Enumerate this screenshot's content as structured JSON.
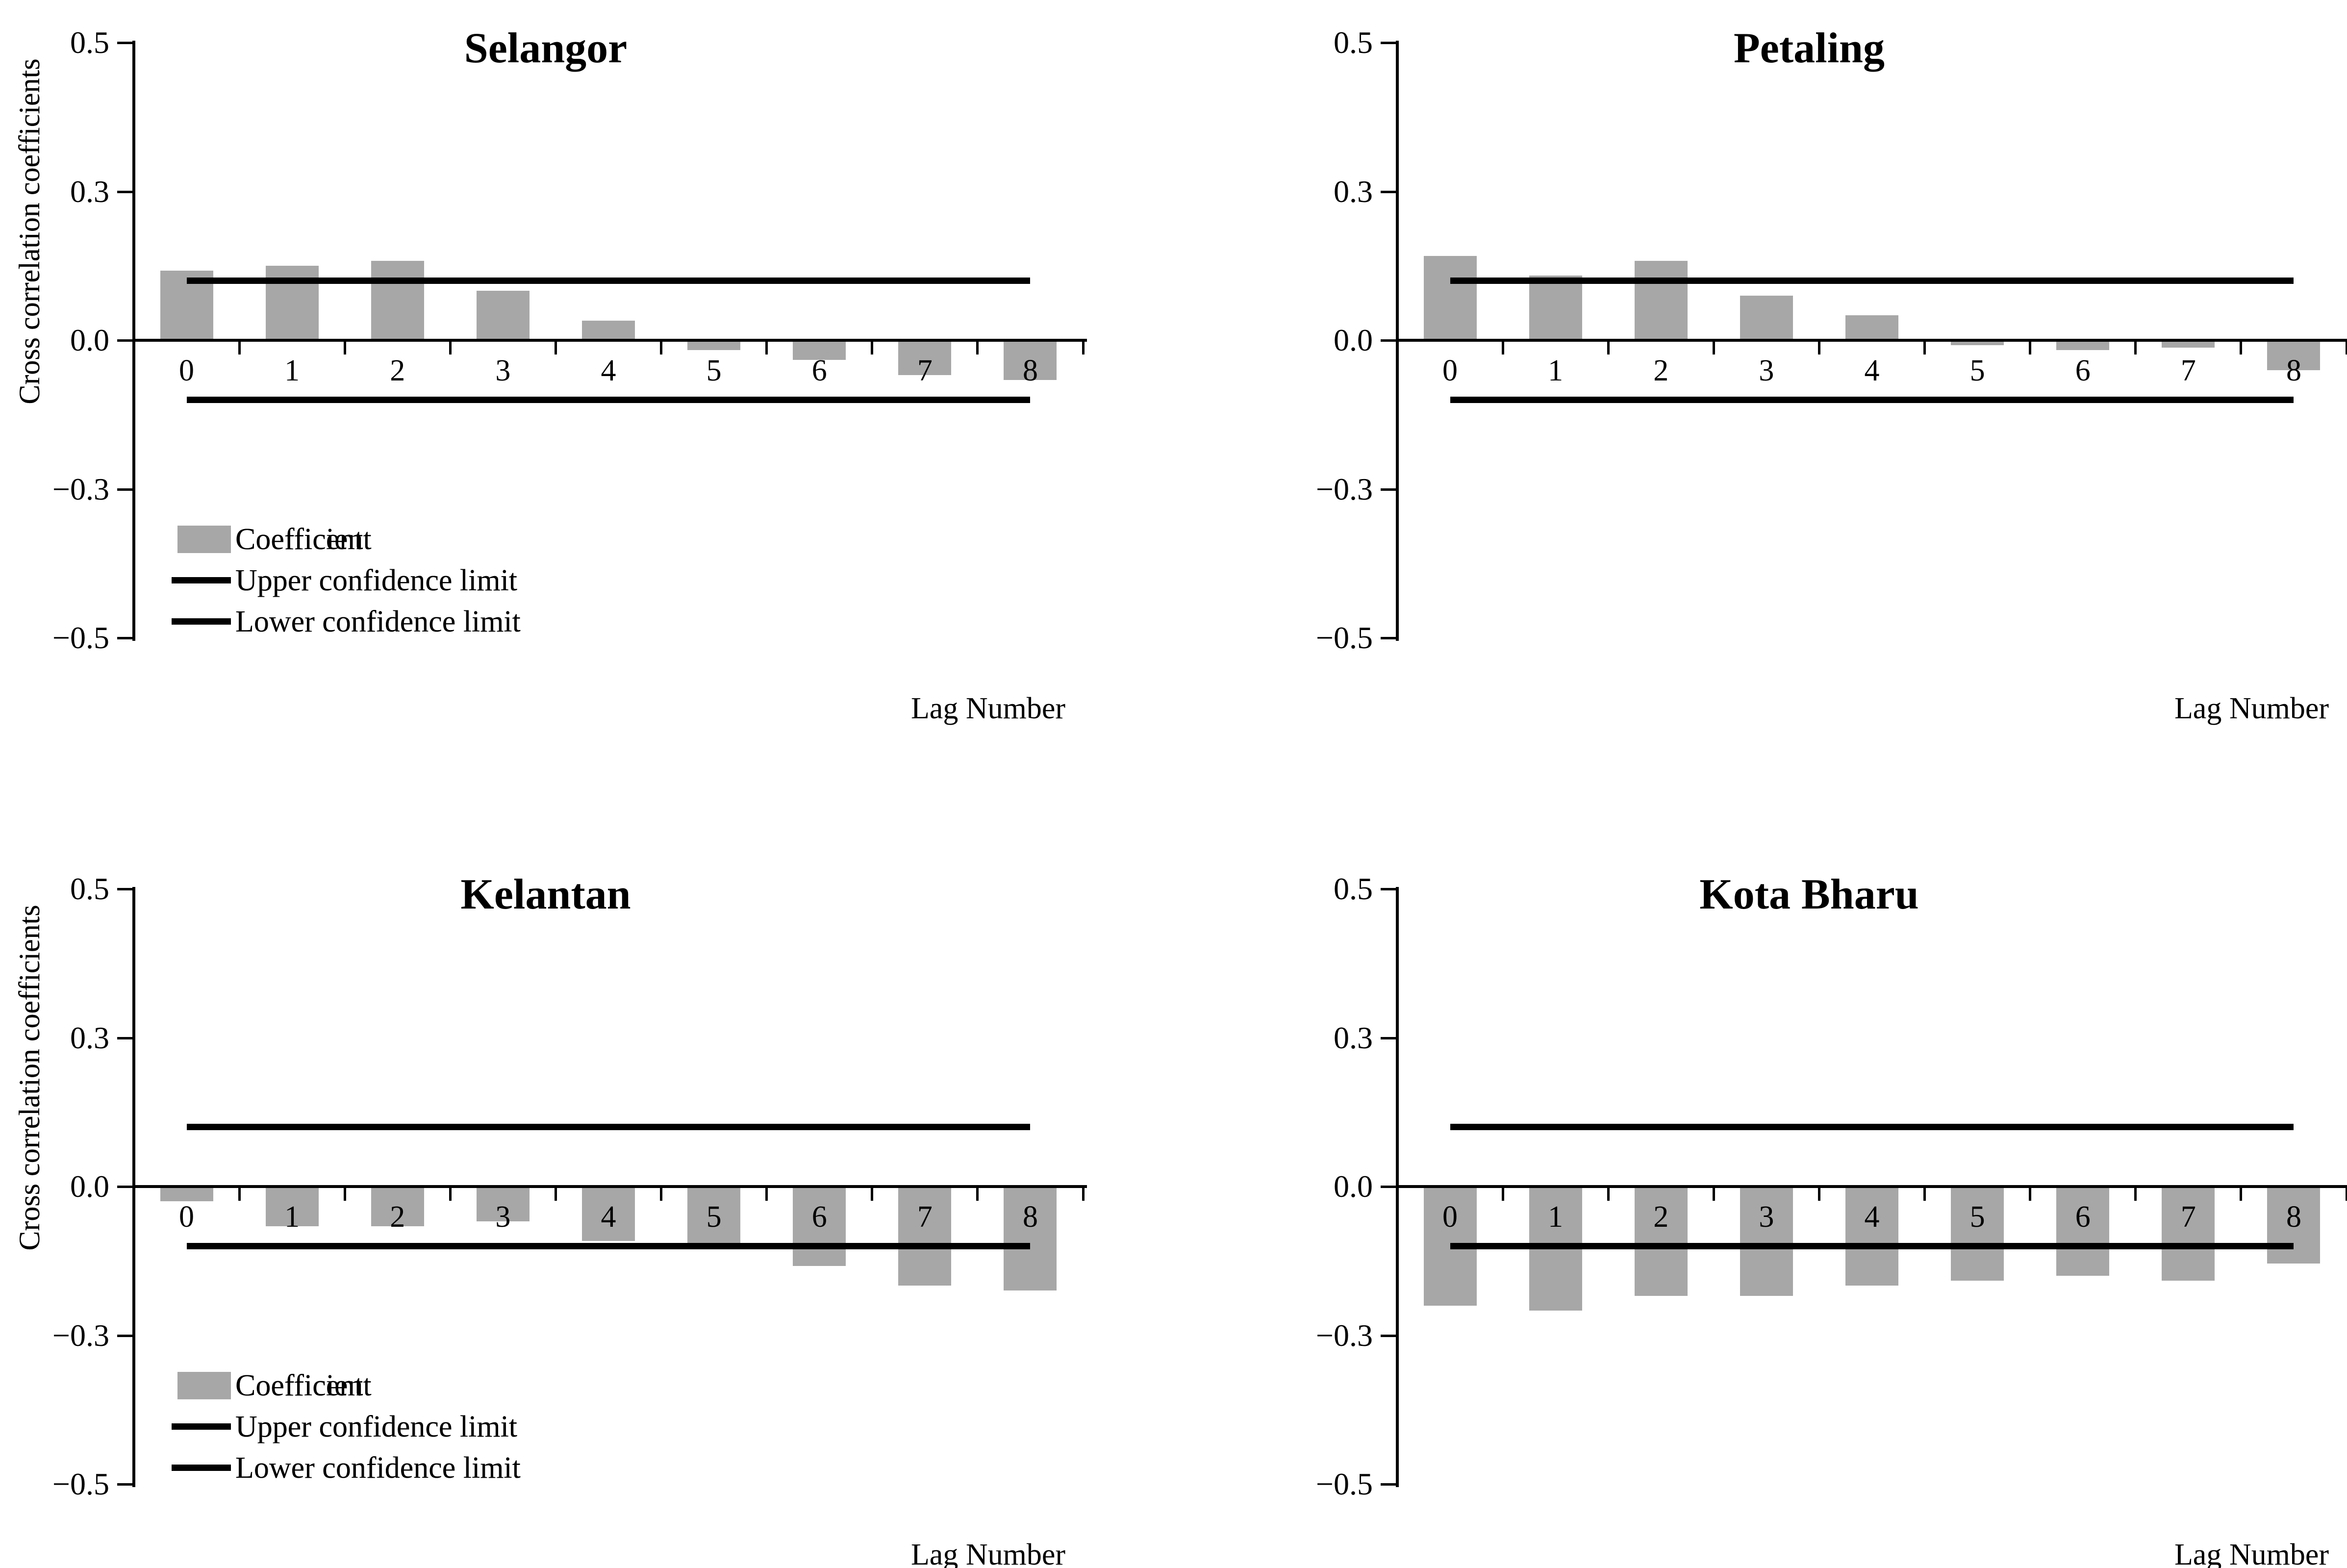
{
  "figure": {
    "background": "#ffffff",
    "bar_color": "#a7a7a7",
    "line_color": "#000000",
    "text_color": "#000000"
  },
  "axis": {
    "y_tick_labels": [
      "0.5",
      "0.3",
      "0.0",
      "−0.3",
      "−0.5"
    ],
    "y_tick_values": [
      0.5,
      0.3,
      0.0,
      -0.3,
      -0.5
    ],
    "x_label": "Lag Number",
    "y_label": "Cross correlation  coefficients"
  },
  "chart_data": [
    {
      "type": "bar",
      "title": "Selangor",
      "xlabel": "Lag Number",
      "ylabel": "Cross correlation  coefficients",
      "categories": [
        "0",
        "1",
        "2",
        "3",
        "4",
        "5",
        "6",
        "7",
        "8"
      ],
      "values": [
        0.14,
        0.15,
        0.16,
        0.1,
        0.04,
        -0.02,
        -0.04,
        -0.07,
        -0.08
      ],
      "upper_confidence_limit": 0.12,
      "lower_confidence_limit": -0.12,
      "y_ticks": [
        0.5,
        0.3,
        0.0,
        -0.3,
        -0.5
      ],
      "legend": {
        "coefficient": "Coefficent",
        "upper": "Upper confidence limit",
        "lower": "Lower confidence limit"
      }
    },
    {
      "type": "bar",
      "title": "Petaling",
      "xlabel": "Lag Number",
      "ylabel": "Cross correlation  coefficients",
      "categories": [
        "0",
        "1",
        "2",
        "3",
        "4",
        "5",
        "6",
        "7",
        "8"
      ],
      "values": [
        0.17,
        0.13,
        0.16,
        0.09,
        0.05,
        -0.01,
        -0.02,
        -0.015,
        -0.06
      ],
      "upper_confidence_limit": 0.12,
      "lower_confidence_limit": -0.12,
      "y_ticks": [
        0.5,
        0.3,
        0.0,
        -0.3,
        -0.5
      ],
      "legend": {
        "coefficient": "Coefficient",
        "upper": "Upper confidence limit",
        "lower": "Lower confidence limit"
      }
    },
    {
      "type": "bar",
      "title": "Kelantan",
      "xlabel": "Lag Number",
      "ylabel": "Cross correlation  coefficients",
      "categories": [
        "0",
        "1",
        "2",
        "3",
        "4",
        "5",
        "6",
        "7",
        "8"
      ],
      "values": [
        -0.03,
        -0.08,
        -0.08,
        -0.07,
        -0.11,
        -0.12,
        -0.16,
        -0.2,
        -0.21
      ],
      "upper_confidence_limit": 0.12,
      "lower_confidence_limit": -0.12,
      "y_ticks": [
        0.5,
        0.3,
        0.0,
        -0.3,
        -0.5
      ],
      "legend": {
        "coefficient": "Coefficent",
        "upper": "Upper confidence limit",
        "lower": "Lower confidence limit"
      }
    },
    {
      "type": "bar",
      "title": "Kota Bharu",
      "xlabel": "Lag Number",
      "ylabel": "Cross correlation  coefficients",
      "categories": [
        "0",
        "1",
        "2",
        "3",
        "4",
        "5",
        "6",
        "7",
        "8"
      ],
      "values": [
        -0.24,
        -0.25,
        -0.22,
        -0.22,
        -0.2,
        -0.19,
        -0.18,
        -0.19,
        -0.155
      ],
      "upper_confidence_limit": 0.12,
      "lower_confidence_limit": -0.12,
      "y_ticks": [
        0.5,
        0.3,
        0.0,
        -0.3,
        -0.5
      ],
      "legend": {
        "coefficient": "Coefficient",
        "upper": "Upper confidence limit",
        "lower": "Lower confidence limit"
      }
    }
  ]
}
